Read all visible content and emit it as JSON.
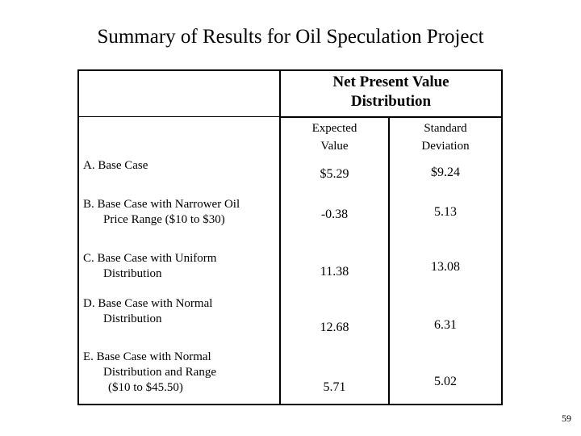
{
  "title": "Summary of Results for Oil Speculation Project",
  "header": {
    "group_line1": "Net Present Value",
    "group_line2": "Distribution",
    "col1_line1": "Expected",
    "col1_line2": "Value",
    "col2_line1": "Standard",
    "col2_line2": "Deviation"
  },
  "rows": [
    {
      "letter": "A.",
      "label_lines": [
        "Base Case"
      ],
      "expected": "$5.29",
      "stdev": "$9.24"
    },
    {
      "letter": "B.",
      "label_lines": [
        "Base Case with Narrower Oil",
        "Price Range ($10 to $30)"
      ],
      "expected": "-0.38",
      "stdev": "5.13"
    },
    {
      "letter": "C.",
      "label_lines": [
        "Base Case with Uniform",
        "Distribution"
      ],
      "expected": "11.38",
      "stdev": "13.08"
    },
    {
      "letter": "D.",
      "label_lines": [
        "Base Case with Normal",
        "Distribution"
      ],
      "expected": "12.68",
      "stdev": "6.31"
    },
    {
      "letter": "E.",
      "label_lines": [
        "Base Case with Normal",
        "Distribution and Range",
        "($10 to $45.50)"
      ],
      "expected": "5.71",
      "stdev": "5.02"
    }
  ],
  "page_number": "59"
}
